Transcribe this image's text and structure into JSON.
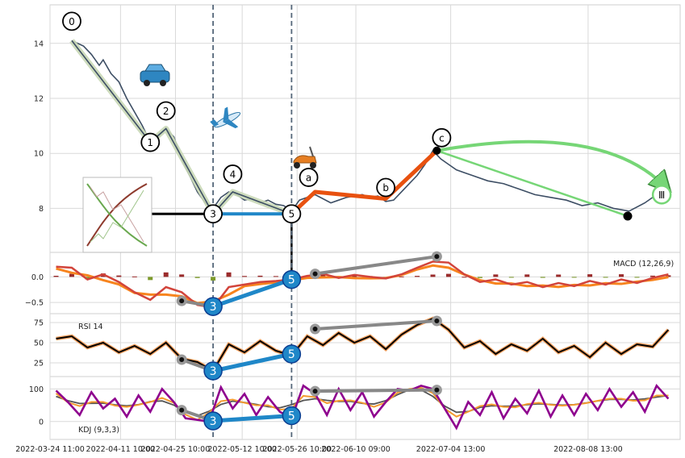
{
  "chart_data": {
    "type": "line",
    "x_dates": [
      "2022-03-24 11:00",
      "2022-04-11 10:00",
      "2022-04-25 10:00",
      "2022-05-12 10:00",
      "2022-05-26 10:00",
      "2022-06-10 09:00",
      "2022-07-04 13:00",
      "2022-08-08 13:00"
    ],
    "x_range": [
      "2022-03-24 11:00",
      "2022-09-01 00:00"
    ],
    "grid": true,
    "price": {
      "y_ticks": [
        8,
        10,
        12,
        14
      ],
      "ylim": [
        6.4,
        15.4
      ],
      "path": [
        [
          "2022-03-30",
          14.1
        ],
        [
          "2022-04-02",
          13.9
        ],
        [
          "2022-04-04",
          13.6
        ],
        [
          "2022-04-06",
          13.2
        ],
        [
          "2022-04-07",
          13.4
        ],
        [
          "2022-04-09",
          12.9
        ],
        [
          "2022-04-11",
          12.6
        ],
        [
          "2022-04-13",
          12.0
        ],
        [
          "2022-04-15",
          11.5
        ],
        [
          "2022-04-17",
          11.0
        ],
        [
          "2022-04-19",
          10.4
        ],
        [
          "2022-04-21",
          10.6
        ],
        [
          "2022-04-23",
          10.9
        ],
        [
          "2022-04-25",
          10.6
        ],
        [
          "2022-04-27",
          9.8
        ],
        [
          "2022-04-29",
          9.2
        ],
        [
          "2022-05-01",
          8.6
        ],
        [
          "2022-05-03",
          8.2
        ],
        [
          "2022-05-05",
          8.0
        ],
        [
          "2022-05-07",
          8.4
        ],
        [
          "2022-05-09",
          8.6
        ],
        [
          "2022-05-11",
          8.5
        ],
        [
          "2022-05-13",
          8.3
        ],
        [
          "2022-05-15",
          8.35
        ],
        [
          "2022-05-17",
          8.2
        ],
        [
          "2022-05-19",
          8.3
        ],
        [
          "2022-05-21",
          8.15
        ],
        [
          "2022-05-23",
          8.1
        ],
        [
          "2022-05-25",
          7.9
        ],
        [
          "2022-05-27",
          8.3
        ],
        [
          "2022-05-29",
          8.4
        ],
        [
          "2022-05-31",
          8.5
        ],
        [
          "2022-06-02",
          8.35
        ],
        [
          "2022-06-04",
          8.2
        ],
        [
          "2022-06-06",
          8.3
        ],
        [
          "2022-06-08",
          8.4
        ],
        [
          "2022-06-10",
          8.45
        ],
        [
          "2022-06-12",
          8.5
        ],
        [
          "2022-06-14",
          8.4
        ],
        [
          "2022-06-16",
          8.45
        ],
        [
          "2022-06-18",
          8.25
        ],
        [
          "2022-06-20",
          8.3
        ],
        [
          "2022-06-22",
          8.6
        ],
        [
          "2022-06-24",
          8.9
        ],
        [
          "2022-06-26",
          9.2
        ],
        [
          "2022-06-28",
          9.6
        ],
        [
          "2022-06-30",
          10.1
        ],
        [
          "2022-07-02",
          9.8
        ],
        [
          "2022-07-04",
          9.6
        ],
        [
          "2022-07-06",
          9.4
        ],
        [
          "2022-07-08",
          9.3
        ],
        [
          "2022-07-10",
          9.2
        ],
        [
          "2022-07-14",
          9.0
        ],
        [
          "2022-07-18",
          8.9
        ],
        [
          "2022-07-22",
          8.7
        ],
        [
          "2022-07-26",
          8.5
        ],
        [
          "2022-07-30",
          8.4
        ],
        [
          "2022-08-03",
          8.3
        ],
        [
          "2022-08-07",
          8.1
        ],
        [
          "2022-08-11",
          8.2
        ],
        [
          "2022-08-15",
          8.0
        ],
        [
          "2022-08-19",
          7.9
        ],
        [
          "2022-08-23",
          8.2
        ],
        [
          "2022-08-27",
          8.6
        ]
      ],
      "wave_points": [
        {
          "label": "0",
          "date": "2022-03-30",
          "value": 14.1
        },
        {
          "label": "1",
          "date": "2022-04-19",
          "value": 10.4
        },
        {
          "label": "2",
          "date": "2022-04-23",
          "value": 10.9
        },
        {
          "label": "3",
          "date": "2022-05-05",
          "value": 7.8
        },
        {
          "label": "4",
          "date": "2022-05-10",
          "value": 8.6
        },
        {
          "label": "5",
          "date": "2022-05-25",
          "value": 7.8
        },
        {
          "label": "a",
          "date": "2022-05-31",
          "value": 8.6
        },
        {
          "label": "b",
          "date": "2022-06-18",
          "value": 8.35
        },
        {
          "label": "c",
          "date": "2022-07-01",
          "value": 10.1
        },
        {
          "label": "Ⅲ",
          "date": "2022-08-31",
          "value": 8.5
        }
      ]
    },
    "macd": {
      "label": "MACD (12,26,9)",
      "y_ticks": [
        -0.5,
        0.0
      ],
      "y_tick_labels": [
        "−0.5",
        "0.0"
      ],
      "ylim": [
        -0.72,
        0.48
      ],
      "line": [
        [
          "2022-03-26",
          0.2
        ],
        [
          "2022-03-30",
          0.18
        ],
        [
          "2022-04-03",
          -0.05
        ],
        [
          "2022-04-07",
          0.05
        ],
        [
          "2022-04-11",
          -0.1
        ],
        [
          "2022-04-15",
          -0.3
        ],
        [
          "2022-04-19",
          -0.45
        ],
        [
          "2022-04-23",
          -0.2
        ],
        [
          "2022-04-27",
          -0.3
        ],
        [
          "2022-05-01",
          -0.55
        ],
        [
          "2022-05-05",
          -0.6
        ],
        [
          "2022-05-09",
          -0.2
        ],
        [
          "2022-05-13",
          -0.15
        ],
        [
          "2022-05-17",
          -0.1
        ],
        [
          "2022-05-21",
          -0.08
        ],
        [
          "2022-05-25",
          -0.05
        ],
        [
          "2022-05-29",
          0.02
        ],
        [
          "2022-06-02",
          0.06
        ],
        [
          "2022-06-06",
          -0.02
        ],
        [
          "2022-06-10",
          0.04
        ],
        [
          "2022-06-14",
          0.0
        ],
        [
          "2022-06-18",
          -0.03
        ],
        [
          "2022-06-22",
          0.05
        ],
        [
          "2022-06-26",
          0.18
        ],
        [
          "2022-06-30",
          0.3
        ],
        [
          "2022-07-04",
          0.28
        ],
        [
          "2022-07-08",
          0.05
        ],
        [
          "2022-07-12",
          -0.1
        ],
        [
          "2022-07-16",
          -0.05
        ],
        [
          "2022-07-20",
          -0.15
        ],
        [
          "2022-07-24",
          -0.1
        ],
        [
          "2022-07-28",
          -0.2
        ],
        [
          "2022-08-01",
          -0.12
        ],
        [
          "2022-08-05",
          -0.18
        ],
        [
          "2022-08-09",
          -0.08
        ],
        [
          "2022-08-13",
          -0.15
        ],
        [
          "2022-08-17",
          -0.05
        ],
        [
          "2022-08-21",
          -0.12
        ],
        [
          "2022-08-25",
          -0.02
        ],
        [
          "2022-08-29",
          0.05
        ]
      ],
      "divergence": [
        {
          "date": "2022-04-27",
          "value": -0.47
        },
        {
          "date": "2022-05-05",
          "value": -0.58
        },
        {
          "date": "2022-05-25",
          "value": -0.05
        },
        {
          "date": "2022-05-31",
          "value": 0.06
        },
        {
          "date": "2022-07-01",
          "value": 0.4
        }
      ]
    },
    "rsi": {
      "label": "RSI 14",
      "y_ticks": [
        25,
        50,
        75
      ],
      "ylim": [
        8,
        86
      ],
      "line": [
        [
          "2022-03-26",
          55
        ],
        [
          "2022-03-30",
          58
        ],
        [
          "2022-04-03",
          44
        ],
        [
          "2022-04-07",
          50
        ],
        [
          "2022-04-11",
          38
        ],
        [
          "2022-04-15",
          46
        ],
        [
          "2022-04-19",
          36
        ],
        [
          "2022-04-23",
          50
        ],
        [
          "2022-04-27",
          30
        ],
        [
          "2022-05-01",
          26
        ],
        [
          "2022-05-05",
          15
        ],
        [
          "2022-05-09",
          48
        ],
        [
          "2022-05-13",
          38
        ],
        [
          "2022-05-17",
          52
        ],
        [
          "2022-05-21",
          40
        ],
        [
          "2022-05-25",
          34
        ],
        [
          "2022-05-29",
          58
        ],
        [
          "2022-06-02",
          47
        ],
        [
          "2022-06-06",
          62
        ],
        [
          "2022-06-10",
          50
        ],
        [
          "2022-06-14",
          58
        ],
        [
          "2022-06-18",
          42
        ],
        [
          "2022-06-22",
          60
        ],
        [
          "2022-06-26",
          72
        ],
        [
          "2022-06-30",
          80
        ],
        [
          "2022-07-04",
          66
        ],
        [
          "2022-07-08",
          44
        ],
        [
          "2022-07-12",
          52
        ],
        [
          "2022-07-16",
          36
        ],
        [
          "2022-07-20",
          48
        ],
        [
          "2022-07-24",
          40
        ],
        [
          "2022-07-28",
          55
        ],
        [
          "2022-08-01",
          38
        ],
        [
          "2022-08-05",
          46
        ],
        [
          "2022-08-09",
          32
        ],
        [
          "2022-08-13",
          50
        ],
        [
          "2022-08-17",
          36
        ],
        [
          "2022-08-21",
          48
        ],
        [
          "2022-08-25",
          45
        ],
        [
          "2022-08-29",
          66
        ]
      ],
      "divergence": [
        {
          "date": "2022-04-27",
          "value": 29
        },
        {
          "date": "2022-05-05",
          "value": 15
        },
        {
          "date": "2022-05-25",
          "value": 36
        },
        {
          "date": "2022-05-31",
          "value": 67
        },
        {
          "date": "2022-07-01",
          "value": 77
        }
      ]
    },
    "kdj": {
      "label": "KDJ (9,3,3)",
      "y_ticks": [
        0,
        100
      ],
      "ylim": [
        -55,
        138
      ],
      "line": [
        [
          "2022-03-26",
          95
        ],
        [
          "2022-03-29",
          60
        ],
        [
          "2022-04-01",
          20
        ],
        [
          "2022-04-04",
          90
        ],
        [
          "2022-04-07",
          40
        ],
        [
          "2022-04-10",
          70
        ],
        [
          "2022-04-13",
          15
        ],
        [
          "2022-04-16",
          80
        ],
        [
          "2022-04-19",
          30
        ],
        [
          "2022-04-22",
          100
        ],
        [
          "2022-04-25",
          60
        ],
        [
          "2022-04-28",
          10
        ],
        [
          "2022-05-01",
          5
        ],
        [
          "2022-05-04",
          0
        ],
        [
          "2022-05-07",
          105
        ],
        [
          "2022-05-10",
          40
        ],
        [
          "2022-05-13",
          85
        ],
        [
          "2022-05-16",
          20
        ],
        [
          "2022-05-19",
          75
        ],
        [
          "2022-05-22",
          30
        ],
        [
          "2022-05-25",
          10
        ],
        [
          "2022-05-28",
          110
        ],
        [
          "2022-05-31",
          85
        ],
        [
          "2022-06-03",
          20
        ],
        [
          "2022-06-06",
          100
        ],
        [
          "2022-06-09",
          35
        ],
        [
          "2022-06-12",
          90
        ],
        [
          "2022-06-15",
          15
        ],
        [
          "2022-06-18",
          60
        ],
        [
          "2022-06-21",
          100
        ],
        [
          "2022-06-24",
          95
        ],
        [
          "2022-06-27",
          110
        ],
        [
          "2022-06-30",
          100
        ],
        [
          "2022-07-03",
          40
        ],
        [
          "2022-07-06",
          -20
        ],
        [
          "2022-07-09",
          60
        ],
        [
          "2022-07-12",
          20
        ],
        [
          "2022-07-15",
          90
        ],
        [
          "2022-07-18",
          10
        ],
        [
          "2022-07-21",
          70
        ],
        [
          "2022-07-24",
          25
        ],
        [
          "2022-07-27",
          95
        ],
        [
          "2022-07-30",
          15
        ],
        [
          "2022-08-02",
          80
        ],
        [
          "2022-08-05",
          20
        ],
        [
          "2022-08-08",
          85
        ],
        [
          "2022-08-11",
          35
        ],
        [
          "2022-08-14",
          100
        ],
        [
          "2022-08-17",
          45
        ],
        [
          "2022-08-20",
          90
        ],
        [
          "2022-08-23",
          30
        ],
        [
          "2022-08-26",
          110
        ],
        [
          "2022-08-29",
          70
        ]
      ],
      "divergence": [
        {
          "date": "2022-04-27",
          "value": 35
        },
        {
          "date": "2022-05-05",
          "value": 2
        },
        {
          "date": "2022-05-25",
          "value": 18
        },
        {
          "date": "2022-05-31",
          "value": 93
        },
        {
          "date": "2022-07-01",
          "value": 97
        }
      ]
    },
    "markers": {
      "vlines": [
        "2022-05-05",
        "2022-05-25"
      ]
    },
    "colors": {
      "price": "#3d4e64",
      "grid": "#d9d9d9",
      "macd": "#d2443b",
      "signal": "#f7841e",
      "hist_pos": "#9a2b2b",
      "hist_neg": "#7c9a2b",
      "rsi": "#000000",
      "rsi_halo": "#f4a261",
      "kdj_j": "#8e008e",
      "kdj_k": "#f49b30",
      "kdj_d": "#555555",
      "impulse": "#3d4e64",
      "impulse_band": "#c9d8b6",
      "correction": "#e8510f",
      "projection": "#76d676",
      "divergence": "#888888",
      "wave3_5": "#1f87c8",
      "vline": "#55677a",
      "support": "#000000"
    },
    "icons": {
      "car": "car-icon",
      "plane": "airplane-icon",
      "scooter": "scooter-icon",
      "inset": "elliott-wave-diagram-icon"
    }
  }
}
